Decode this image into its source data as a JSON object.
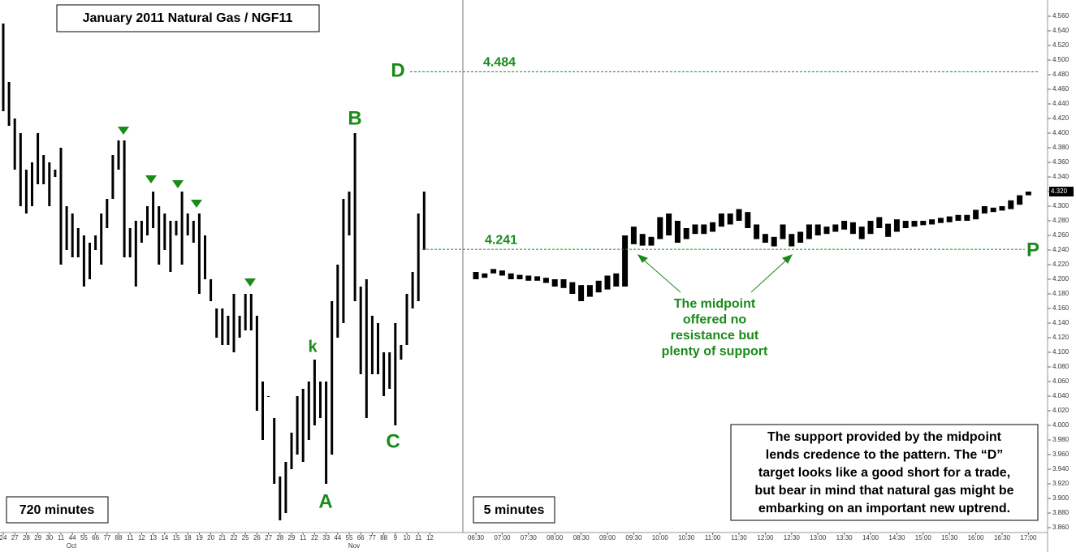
{
  "title": "January 2011 Natural Gas  /  NGF11",
  "levels": [
    {
      "label": "D",
      "value": 4.484
    },
    {
      "label": "P",
      "value": 4.241
    }
  ],
  "last_price": {
    "value": 4.32,
    "label": "4.320"
  },
  "point_labels": [
    "B",
    "k",
    "A",
    "C"
  ],
  "month_labels": [
    "Oct",
    "Nov"
  ],
  "note_green": [
    "The midpoint",
    "offered no",
    "resistance but",
    "plenty of support"
  ],
  "note_box": [
    "The support provided by the midpoint",
    "lends credence to the pattern.  The “D”",
    "target looks like a good short for a trade,",
    "but bear in mind that natural gas might be",
    "embarking on an important new uptrend."
  ],
  "chart_data": [
    {
      "type": "ohlc",
      "timeframe": "720 minutes",
      "categories": [
        "24",
        null,
        "27",
        null,
        "28",
        null,
        "29",
        null,
        "30",
        null,
        "11",
        null,
        "44",
        null,
        "55",
        null,
        "66",
        null,
        "77",
        null,
        "88",
        null,
        "11",
        null,
        "12",
        null,
        "13",
        null,
        "14",
        null,
        "15",
        null,
        "18",
        null,
        "19",
        null,
        "20",
        null,
        "21",
        null,
        "22",
        null,
        "25",
        null,
        "26",
        null,
        "27",
        null,
        "28",
        null,
        "29",
        null,
        "11",
        null,
        "22",
        null,
        "33",
        null,
        "44",
        null,
        "55",
        null,
        "66",
        null,
        "77",
        null,
        "88",
        null,
        "9",
        null,
        "10",
        null,
        "11",
        null,
        "12",
        null
      ],
      "high": [
        4.55,
        4.47,
        4.42,
        4.4,
        4.35,
        4.36,
        4.4,
        4.37,
        4.36,
        4.35,
        4.38,
        4.3,
        4.29,
        4.27,
        4.26,
        4.25,
        4.26,
        4.29,
        4.31,
        4.37,
        4.39,
        4.39,
        4.27,
        4.28,
        4.28,
        4.3,
        4.32,
        4.3,
        4.29,
        4.28,
        4.28,
        4.32,
        4.29,
        4.28,
        4.29,
        4.26,
        4.2,
        4.16,
        4.16,
        4.15,
        4.18,
        4.15,
        4.18,
        4.18,
        4.15,
        4.06,
        4.04,
        4.01,
        3.93,
        3.95,
        3.99,
        4.04,
        4.05,
        4.06,
        4.09,
        4.06,
        4.06,
        4.17,
        4.22,
        4.31,
        4.32,
        4.4,
        4.19,
        4.2,
        4.15,
        4.14,
        4.1,
        4.1,
        4.14,
        4.11,
        4.18,
        4.21,
        4.29,
        4.32,
        null,
        null
      ],
      "low": [
        4.43,
        4.41,
        4.35,
        4.3,
        4.29,
        4.3,
        4.33,
        4.33,
        4.3,
        4.34,
        4.22,
        4.24,
        4.23,
        4.23,
        4.19,
        4.2,
        4.24,
        4.22,
        4.27,
        4.31,
        4.35,
        4.23,
        4.23,
        4.19,
        4.25,
        4.26,
        4.27,
        4.22,
        4.24,
        4.21,
        4.26,
        4.22,
        4.26,
        4.25,
        4.18,
        4.2,
        4.17,
        4.12,
        4.11,
        4.11,
        4.1,
        4.12,
        4.13,
        4.13,
        4.02,
        3.98,
        4.04,
        3.92,
        3.87,
        3.88,
        3.94,
        3.96,
        3.95,
        3.98,
        4.0,
        4.01,
        3.92,
        3.96,
        4.12,
        4.14,
        4.26,
        4.17,
        4.07,
        4.01,
        4.07,
        4.07,
        4.04,
        4.05,
        4.0,
        4.09,
        4.11,
        4.16,
        4.17,
        4.24,
        null,
        null
      ],
      "color": "#000000"
    },
    {
      "type": "ohlc",
      "timeframe": "5 minutes",
      "categories": [
        "06:30",
        null,
        null,
        "07:00",
        null,
        null,
        "07:30",
        null,
        null,
        "08:00",
        null,
        null,
        "08:30",
        null,
        null,
        "09:00",
        null,
        null,
        "09:30",
        null,
        null,
        "10:00",
        null,
        null,
        "10:30",
        null,
        null,
        "11:00",
        null,
        null,
        "11:30",
        null,
        null,
        "12:00",
        null,
        null,
        "12:30",
        null,
        null,
        "13:00",
        null,
        null,
        "13:30",
        null,
        null,
        "14:00",
        null,
        null,
        "14:30",
        null,
        null,
        "15:00",
        null,
        null,
        "15:30",
        null,
        null,
        "16:00",
        null,
        null,
        "16:30",
        null,
        null,
        "17:00"
      ],
      "high": [
        4.21,
        4.208,
        4.214,
        4.212,
        4.208,
        4.206,
        4.205,
        4.204,
        4.202,
        4.2,
        4.2,
        4.196,
        4.192,
        4.192,
        4.198,
        4.205,
        4.208,
        4.26,
        4.272,
        4.262,
        4.258,
        4.285,
        4.29,
        4.28,
        4.27,
        4.275,
        4.275,
        4.278,
        4.29,
        4.29,
        4.296,
        4.292,
        4.275,
        4.262,
        4.258,
        4.275,
        4.262,
        4.265,
        4.275,
        4.275,
        4.272,
        4.275,
        4.28,
        4.278,
        4.272,
        4.28,
        4.285,
        4.276,
        4.282,
        4.28,
        4.28,
        4.28,
        4.282,
        4.284,
        4.286,
        4.288,
        4.288,
        4.295,
        4.3,
        4.298,
        4.3,
        4.308,
        4.315,
        4.32
      ],
      "low": [
        4.2,
        4.202,
        4.208,
        4.205,
        4.2,
        4.2,
        4.198,
        4.198,
        4.195,
        4.19,
        4.188,
        4.18,
        4.17,
        4.176,
        4.182,
        4.186,
        4.19,
        4.19,
        4.248,
        4.246,
        4.246,
        4.255,
        4.26,
        4.25,
        4.255,
        4.262,
        4.262,
        4.265,
        4.272,
        4.275,
        4.28,
        4.27,
        4.255,
        4.25,
        4.245,
        4.255,
        4.245,
        4.25,
        4.255,
        4.26,
        4.262,
        4.265,
        4.268,
        4.262,
        4.255,
        4.262,
        4.27,
        4.258,
        4.265,
        4.27,
        4.272,
        4.274,
        4.275,
        4.277,
        4.278,
        4.28,
        4.28,
        4.282,
        4.29,
        4.292,
        4.294,
        4.296,
        4.302,
        4.315
      ],
      "color": "#000000",
      "ylim": [
        3.86,
        4.56
      ],
      "yticks": [
        {
          "value": 3.86,
          "label": "3.860"
        },
        {
          "value": 3.88,
          "label": "3.880"
        },
        {
          "value": 3.9,
          "label": "3.900"
        },
        {
          "value": 3.92,
          "label": "3.920"
        },
        {
          "value": 3.94,
          "label": "3.940"
        },
        {
          "value": 3.96,
          "label": "3.960"
        },
        {
          "value": 3.98,
          "label": "3.980"
        },
        {
          "value": 4.0,
          "label": "4.000"
        },
        {
          "value": 4.02,
          "label": "4.020"
        },
        {
          "value": 4.04,
          "label": "4.040"
        },
        {
          "value": 4.06,
          "label": "4.060"
        },
        {
          "value": 4.08,
          "label": "4.080"
        },
        {
          "value": 4.1,
          "label": "4.100"
        },
        {
          "value": 4.12,
          "label": "4.120"
        },
        {
          "value": 4.14,
          "label": "4.140"
        },
        {
          "value": 4.16,
          "label": "4.160"
        },
        {
          "value": 4.18,
          "label": "4.180"
        },
        {
          "value": 4.2,
          "label": "4.200"
        },
        {
          "value": 4.22,
          "label": "4.220"
        },
        {
          "value": 4.24,
          "label": "4.240"
        },
        {
          "value": 4.26,
          "label": "4.260"
        },
        {
          "value": 4.28,
          "label": "4.280"
        },
        {
          "value": 4.3,
          "label": "4.300"
        },
        {
          "value": 4.32,
          "label": "4.320"
        },
        {
          "value": 4.34,
          "label": "4.340"
        },
        {
          "value": 4.36,
          "label": "4.360"
        },
        {
          "value": 4.38,
          "label": "4.380"
        },
        {
          "value": 4.4,
          "label": "4.400"
        },
        {
          "value": 4.42,
          "label": "4.420"
        },
        {
          "value": 4.44,
          "label": "4.440"
        },
        {
          "value": 4.46,
          "label": "4.460"
        },
        {
          "value": 4.48,
          "label": "4.480"
        },
        {
          "value": 4.5,
          "label": "4.500"
        },
        {
          "value": 4.52,
          "label": "4.520"
        },
        {
          "value": 4.54,
          "label": "4.540"
        },
        {
          "value": 4.56,
          "label": "4.560"
        }
      ]
    }
  ]
}
